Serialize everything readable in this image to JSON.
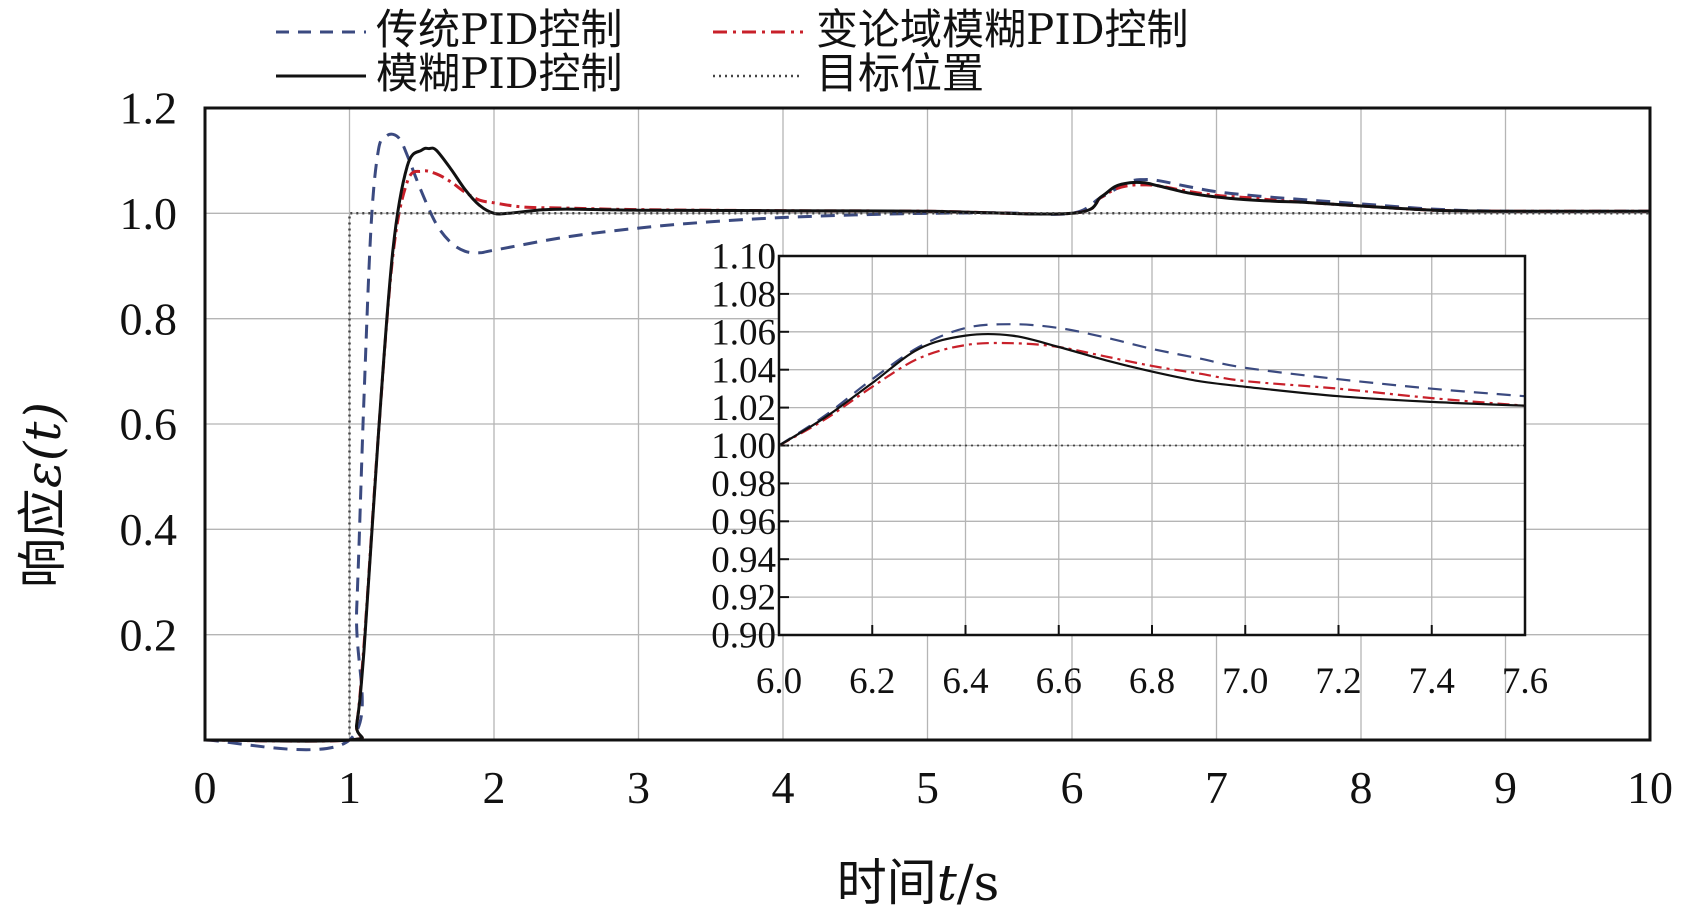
{
  "chart_data": [
    {
      "type": "line",
      "xlabel_main": "时间",
      "xlabel_var": "t",
      "xlabel_unit": "/s",
      "ylabel_main": "响应",
      "ylabel_var": "ε(t)",
      "xlim": [
        0,
        10
      ],
      "ylim": [
        0,
        1.2
      ],
      "x_ticks": [
        "0",
        "1",
        "2",
        "3",
        "4",
        "5",
        "6",
        "7",
        "8",
        "9",
        "10"
      ],
      "y_ticks": [
        "0.2",
        "0.4",
        "0.6",
        "0.8",
        "1.0",
        "1.2"
      ],
      "grid": true,
      "legend_position": "top, above plot",
      "series": [
        {
          "name": "传统PID控制",
          "style": "dashed",
          "color": "#3b4a80",
          "x": [
            0,
            1.0,
            1.05,
            1.1,
            1.15,
            1.2,
            1.25,
            1.3,
            1.35,
            1.4,
            1.5,
            1.6,
            1.7,
            1.8,
            1.9,
            2.0,
            2.5,
            3.0,
            3.5,
            4.0,
            4.5,
            5.0,
            5.5,
            6.0,
            6.2,
            6.4,
            6.5,
            6.6,
            6.8,
            7.0,
            7.2,
            7.4,
            7.6,
            8.0,
            8.5,
            9.0,
            10.0
          ],
          "y": [
            0,
            0,
            0.25,
            0.65,
            0.98,
            1.12,
            1.145,
            1.15,
            1.14,
            1.11,
            1.04,
            0.98,
            0.945,
            0.928,
            0.925,
            0.93,
            0.955,
            0.972,
            0.984,
            0.992,
            0.997,
            1.0,
            1.001,
            1.0,
            1.03,
            1.06,
            1.064,
            1.062,
            1.051,
            1.041,
            1.035,
            1.03,
            1.026,
            1.018,
            1.008,
            1.004,
            1.004
          ]
        },
        {
          "name": "变论域模糊PID控制",
          "style": "dash-dot",
          "color": "#c8202a",
          "x": [
            0,
            1.0,
            1.05,
            1.1,
            1.2,
            1.3,
            1.4,
            1.5,
            1.6,
            1.7,
            1.8,
            1.9,
            2.0,
            2.2,
            2.5,
            3.0,
            4.0,
            5.0,
            6.0,
            6.2,
            6.3,
            6.4,
            6.5,
            6.6,
            6.8,
            7.0,
            7.2,
            7.4,
            7.6,
            8.0,
            8.5,
            9.0,
            10.0
          ],
          "y": [
            0,
            0,
            0.03,
            0.18,
            0.58,
            0.92,
            1.06,
            1.08,
            1.075,
            1.06,
            1.04,
            1.025,
            1.02,
            1.012,
            1.01,
            1.007,
            1.005,
            1.004,
            1.0,
            1.03,
            1.046,
            1.053,
            1.054,
            1.052,
            1.042,
            1.034,
            1.03,
            1.025,
            1.021,
            1.014,
            1.006,
            1.004,
            1.004
          ]
        },
        {
          "name": "模糊PID控制",
          "style": "solid",
          "color": "#111111",
          "x": [
            0,
            1.0,
            1.05,
            1.1,
            1.2,
            1.3,
            1.4,
            1.5,
            1.55,
            1.6,
            1.7,
            1.8,
            1.9,
            2.0,
            2.1,
            2.3,
            2.5,
            3.0,
            4.0,
            5.0,
            6.0,
            6.2,
            6.3,
            6.4,
            6.5,
            6.6,
            6.8,
            7.0,
            7.2,
            7.4,
            7.6,
            8.0,
            8.5,
            9.0,
            10.0
          ],
          "y": [
            0,
            0,
            0.03,
            0.17,
            0.58,
            0.93,
            1.09,
            1.12,
            1.123,
            1.12,
            1.085,
            1.045,
            1.015,
            1.0,
            1.0,
            1.006,
            1.008,
            1.006,
            1.005,
            1.004,
            1.0,
            1.031,
            1.051,
            1.058,
            1.058,
            1.052,
            1.039,
            1.031,
            1.026,
            1.023,
            1.021,
            1.014,
            1.006,
            1.004,
            1.004
          ]
        },
        {
          "name": "目标位置",
          "style": "dotted",
          "color": "#444444",
          "x": [
            0,
            1.0,
            1.0,
            10.0
          ],
          "y": [
            0,
            0,
            1.0,
            1.0
          ]
        }
      ]
    },
    {
      "type": "line",
      "role": "inset",
      "xlim": [
        6.0,
        7.6
      ],
      "ylim": [
        0.9,
        1.1
      ],
      "x_ticks": [
        "6.0",
        "6.2",
        "6.4",
        "6.6",
        "6.8",
        "7.0",
        "7.2",
        "7.4",
        "7.6"
      ],
      "y_ticks": [
        "0.90",
        "0.92",
        "0.94",
        "0.96",
        "0.98",
        "1.00",
        "1.02",
        "1.04",
        "1.06",
        "1.08",
        "1.10"
      ],
      "grid": true,
      "series": [
        {
          "name": "传统PID控制",
          "style": "dashed",
          "color": "#3b4a80",
          "x": [
            6.0,
            6.1,
            6.2,
            6.3,
            6.4,
            6.5,
            6.6,
            6.7,
            6.8,
            6.9,
            7.0,
            7.2,
            7.4,
            7.6
          ],
          "y": [
            1.0,
            1.016,
            1.035,
            1.052,
            1.062,
            1.064,
            1.062,
            1.057,
            1.051,
            1.046,
            1.041,
            1.035,
            1.03,
            1.026
          ]
        },
        {
          "name": "变论域模糊PID控制",
          "style": "dash-dot",
          "color": "#c8202a",
          "x": [
            6.0,
            6.1,
            6.2,
            6.3,
            6.4,
            6.5,
            6.6,
            6.7,
            6.8,
            6.9,
            7.0,
            7.2,
            7.4,
            7.6
          ],
          "y": [
            1.0,
            1.014,
            1.031,
            1.046,
            1.053,
            1.054,
            1.052,
            1.047,
            1.042,
            1.038,
            1.034,
            1.03,
            1.025,
            1.021
          ]
        },
        {
          "name": "模糊PID控制",
          "style": "solid",
          "color": "#111111",
          "x": [
            6.0,
            6.1,
            6.2,
            6.3,
            6.4,
            6.5,
            6.6,
            6.7,
            6.8,
            6.9,
            7.0,
            7.2,
            7.4,
            7.6
          ],
          "y": [
            1.0,
            1.015,
            1.033,
            1.051,
            1.058,
            1.058,
            1.052,
            1.045,
            1.039,
            1.034,
            1.031,
            1.026,
            1.023,
            1.021
          ]
        },
        {
          "name": "目标位置",
          "style": "dotted",
          "color": "#444444",
          "x": [
            6.0,
            7.6
          ],
          "y": [
            1.0,
            1.0
          ]
        }
      ]
    }
  ],
  "colors": {
    "traditional_pid": "#3b4a80",
    "variable_universe_fuzzy_pid": "#c8202a",
    "fuzzy_pid": "#111111",
    "target": "#444444"
  }
}
